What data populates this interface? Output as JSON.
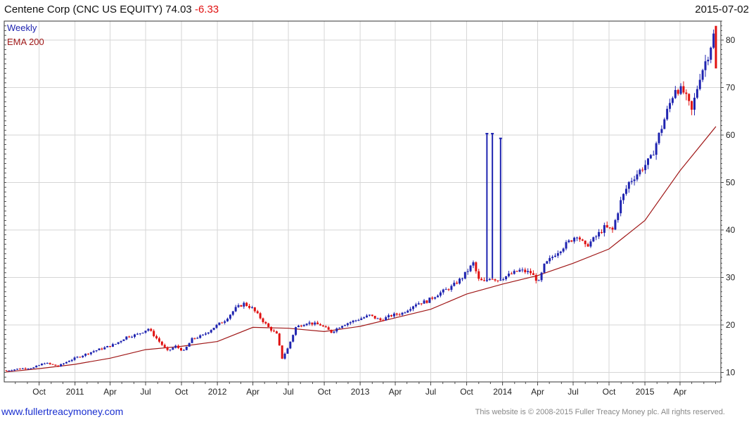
{
  "header": {
    "title": "Centene Corp (CNC US EQUITY)",
    "last": "74.03",
    "change": "-6.33",
    "date": "2015-07-02"
  },
  "legend": {
    "weekly": "Weekly",
    "ema": "EMA 200"
  },
  "footer": {
    "link": "www.fullertreacymoney.com",
    "copyright": "This website is © 2008-2015 Fuller Treacy Money plc. All rights reserved."
  },
  "colors": {
    "up": "#1f24b0",
    "down": "#e01010",
    "ema": "#a01818",
    "grid": "#d6d6d6"
  },
  "chart_data": {
    "type": "candlestick",
    "title": "Centene Corp (CNC US EQUITY)",
    "frequency": "Weekly",
    "x_range": [
      "2010-07-09",
      "2015-07-02"
    ],
    "ylim": [
      8,
      84
    ],
    "yticks": [
      10,
      20,
      30,
      40,
      50,
      60,
      70,
      80
    ],
    "grid": true,
    "y_axis_position": "right",
    "xticks": [
      {
        "date": "2010-10-01",
        "label": "Oct"
      },
      {
        "date": "2011-01-01",
        "label": "2011"
      },
      {
        "date": "2011-04-01",
        "label": "Apr"
      },
      {
        "date": "2011-07-01",
        "label": "Jul"
      },
      {
        "date": "2011-10-01",
        "label": "Oct"
      },
      {
        "date": "2012-01-01",
        "label": "2012"
      },
      {
        "date": "2012-04-01",
        "label": "Apr"
      },
      {
        "date": "2012-07-01",
        "label": "Jul"
      },
      {
        "date": "2012-10-01",
        "label": "Oct"
      },
      {
        "date": "2013-01-01",
        "label": "2013"
      },
      {
        "date": "2013-04-01",
        "label": "Apr"
      },
      {
        "date": "2013-07-01",
        "label": "Jul"
      },
      {
        "date": "2013-10-01",
        "label": "Oct"
      },
      {
        "date": "2014-01-01",
        "label": "2014"
      },
      {
        "date": "2014-04-01",
        "label": "Apr"
      },
      {
        "date": "2014-07-01",
        "label": "Jul"
      },
      {
        "date": "2014-10-01",
        "label": "Oct"
      },
      {
        "date": "2015-01-01",
        "label": "2015"
      },
      {
        "date": "2015-04-01",
        "label": "Apr"
      }
    ],
    "series": [
      {
        "name": "Weekly",
        "kind": "close",
        "points": [
          [
            "2010-07-09",
            10.4
          ],
          [
            "2010-08-13",
            10.8
          ],
          [
            "2010-09-17",
            11.0
          ],
          [
            "2010-10-15",
            12.0
          ],
          [
            "2010-11-19",
            11.3
          ],
          [
            "2010-12-17",
            12.5
          ],
          [
            "2011-01-14",
            13.4
          ],
          [
            "2011-02-18",
            14.5
          ],
          [
            "2011-03-18",
            15.2
          ],
          [
            "2011-04-15",
            16.0
          ],
          [
            "2011-05-13",
            17.5
          ],
          [
            "2011-06-10",
            18.0
          ],
          [
            "2011-07-08",
            19.2
          ],
          [
            "2011-08-05",
            16.5
          ],
          [
            "2011-08-26",
            14.5
          ],
          [
            "2011-09-16",
            15.5
          ],
          [
            "2011-10-07",
            14.5
          ],
          [
            "2011-10-28",
            17.0
          ],
          [
            "2011-11-25",
            17.8
          ],
          [
            "2011-12-23",
            19.5
          ],
          [
            "2012-01-20",
            21.0
          ],
          [
            "2012-02-17",
            23.5
          ],
          [
            "2012-03-09",
            24.5
          ],
          [
            "2012-03-30",
            23.5
          ],
          [
            "2012-04-20",
            21.5
          ],
          [
            "2012-05-11",
            19.5
          ],
          [
            "2012-06-01",
            18.0
          ],
          [
            "2012-06-15",
            13.0
          ],
          [
            "2012-06-29",
            15.0
          ],
          [
            "2012-07-20",
            19.5
          ],
          [
            "2012-08-17",
            20.5
          ],
          [
            "2012-09-21",
            20.0
          ],
          [
            "2012-10-19",
            18.5
          ],
          [
            "2012-11-16",
            20.0
          ],
          [
            "2012-12-21",
            21.0
          ],
          [
            "2013-01-25",
            22.0
          ],
          [
            "2013-02-22",
            21.0
          ],
          [
            "2013-03-22",
            22.0
          ],
          [
            "2013-04-19",
            22.5
          ],
          [
            "2013-05-24",
            24.5
          ],
          [
            "2013-06-21",
            25.0
          ],
          [
            "2013-07-19",
            26.5
          ],
          [
            "2013-08-23",
            28.0
          ],
          [
            "2013-09-20",
            30.0
          ],
          [
            "2013-10-18",
            33.0
          ],
          [
            "2013-11-01",
            29.5
          ],
          [
            "2013-11-15",
            29.0
          ],
          [
            "2013-11-29",
            30.0
          ],
          [
            "2013-12-20",
            29.5
          ],
          [
            "2014-01-17",
            30.5
          ],
          [
            "2014-02-14",
            31.5
          ],
          [
            "2014-03-14",
            31.0
          ],
          [
            "2014-04-04",
            29.0
          ],
          [
            "2014-04-18",
            32.5
          ],
          [
            "2014-05-16",
            35.0
          ],
          [
            "2014-06-13",
            37.0
          ],
          [
            "2014-07-11",
            39.0
          ],
          [
            "2014-08-01",
            36.5
          ],
          [
            "2014-08-22",
            38.0
          ],
          [
            "2014-09-19",
            40.5
          ],
          [
            "2014-10-10",
            40.0
          ],
          [
            "2014-10-31",
            46.0
          ],
          [
            "2014-11-21",
            50.0
          ],
          [
            "2014-12-19",
            52.5
          ],
          [
            "2015-01-16",
            55.0
          ],
          [
            "2015-02-06",
            60.0
          ],
          [
            "2015-02-27",
            65.0
          ],
          [
            "2015-03-20",
            70.0
          ],
          [
            "2015-04-10",
            69.0
          ],
          [
            "2015-05-01",
            65.0
          ],
          [
            "2015-05-22",
            72.5
          ],
          [
            "2015-06-12",
            77.0
          ],
          [
            "2015-06-26",
            81.0
          ],
          [
            "2015-07-02",
            74.03
          ]
        ],
        "spikes": [
          {
            "date": "2013-11-22",
            "high": 60.3,
            "low": 29.5
          },
          {
            "date": "2013-12-06",
            "high": 60.3,
            "low": 29.8
          },
          {
            "date": "2013-12-27",
            "high": 59.3,
            "low": 29.5
          }
        ]
      },
      {
        "name": "EMA 200",
        "kind": "line",
        "points": [
          [
            "2010-07-09",
            10.1
          ],
          [
            "2010-10-01",
            10.8
          ],
          [
            "2011-01-01",
            11.7
          ],
          [
            "2011-04-01",
            13.0
          ],
          [
            "2011-07-01",
            14.8
          ],
          [
            "2011-10-01",
            15.5
          ],
          [
            "2012-01-01",
            16.5
          ],
          [
            "2012-04-01",
            19.5
          ],
          [
            "2012-07-01",
            19.3
          ],
          [
            "2012-10-01",
            18.6
          ],
          [
            "2013-01-01",
            19.7
          ],
          [
            "2013-04-01",
            21.5
          ],
          [
            "2013-07-01",
            23.3
          ],
          [
            "2013-10-01",
            26.5
          ],
          [
            "2014-01-01",
            28.6
          ],
          [
            "2014-04-01",
            30.4
          ],
          [
            "2014-07-01",
            33.0
          ],
          [
            "2014-10-01",
            36.0
          ],
          [
            "2015-01-01",
            42.0
          ],
          [
            "2015-04-01",
            52.5
          ],
          [
            "2015-07-02",
            61.8
          ]
        ]
      }
    ]
  }
}
